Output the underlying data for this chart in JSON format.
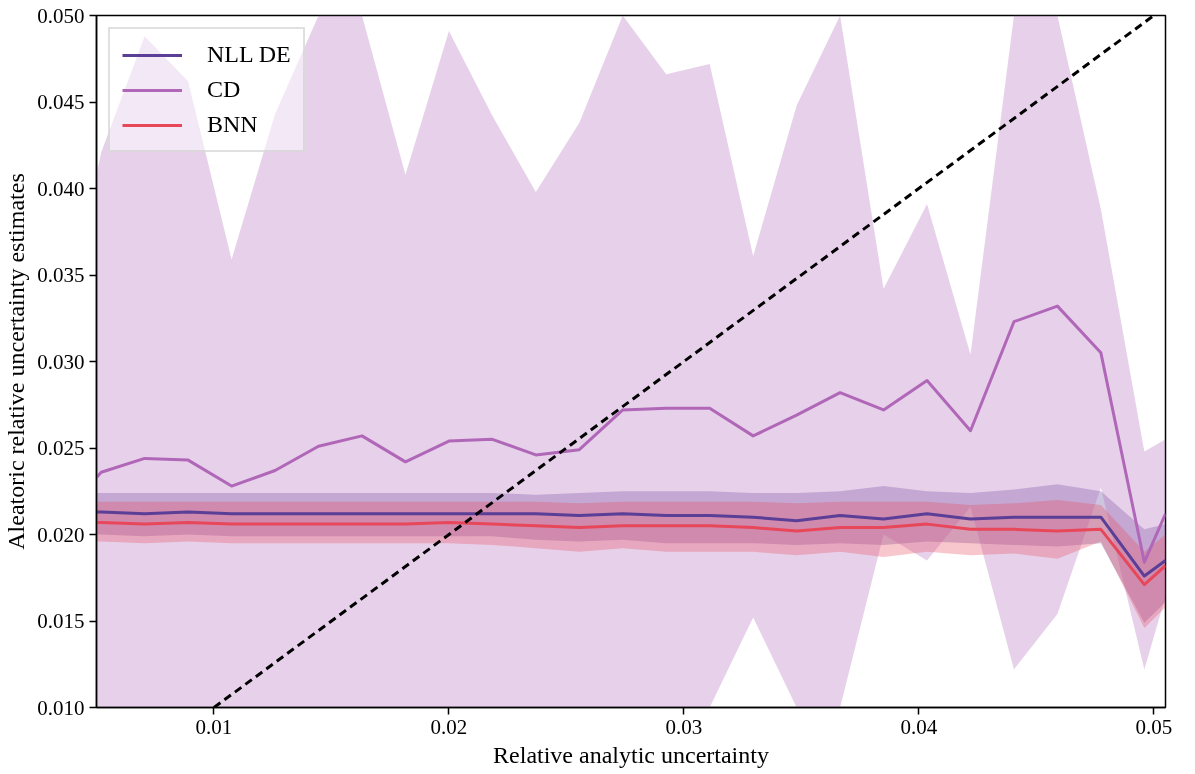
{
  "chart_data": {
    "type": "line",
    "xlabel": "Relative analytic uncertainty",
    "ylabel": "Aleatoric relative uncertainty estimates",
    "x": [
      0.005,
      0.0052,
      0.00705,
      0.0089,
      0.01075,
      0.0126,
      0.01445,
      0.0163,
      0.01815,
      0.02,
      0.02185,
      0.0237,
      0.02555,
      0.0274,
      0.02925,
      0.0311,
      0.03295,
      0.0348,
      0.03665,
      0.0385,
      0.04035,
      0.0422,
      0.04405,
      0.0459,
      0.04775,
      0.0496,
      0.0505
    ],
    "series": [
      {
        "name": "NLL DE",
        "color": "#5b3e96",
        "values": [
          0.0213,
          0.0213,
          0.0212,
          0.0213,
          0.0212,
          0.0212,
          0.0212,
          0.0212,
          0.0212,
          0.0212,
          0.0212,
          0.0212,
          0.0211,
          0.0212,
          0.0211,
          0.0211,
          0.021,
          0.0208,
          0.0211,
          0.0209,
          0.0212,
          0.0209,
          0.021,
          0.021,
          0.021,
          0.0176,
          0.0185
        ],
        "upper": [
          0.0224,
          0.0224,
          0.0224,
          0.0224,
          0.0224,
          0.0224,
          0.0224,
          0.0224,
          0.0224,
          0.0224,
          0.0224,
          0.0223,
          0.0224,
          0.0225,
          0.0225,
          0.0225,
          0.0224,
          0.0224,
          0.0225,
          0.0228,
          0.0225,
          0.0224,
          0.0226,
          0.0229,
          0.0225,
          0.0203,
          0.0206
        ],
        "lower": [
          0.02,
          0.02,
          0.0199,
          0.02,
          0.0199,
          0.0199,
          0.0199,
          0.0199,
          0.0199,
          0.0199,
          0.0199,
          0.0197,
          0.0196,
          0.0197,
          0.0195,
          0.0195,
          0.0195,
          0.0194,
          0.0195,
          0.0194,
          0.0196,
          0.0195,
          0.0194,
          0.0193,
          0.0195,
          0.0149,
          0.0161
        ]
      },
      {
        "name": "CD",
        "color": "#b067b8",
        "values": [
          0.0233,
          0.0236,
          0.0244,
          0.0243,
          0.0228,
          0.0237,
          0.0251,
          0.0257,
          0.0242,
          0.0254,
          0.0255,
          0.0246,
          0.0249,
          0.0272,
          0.0273,
          0.0273,
          0.0257,
          0.0269,
          0.0282,
          0.0272,
          0.0289,
          0.026,
          0.0323,
          0.0332,
          0.0305,
          0.0184,
          0.0212
        ],
        "upper": [
          0.0408,
          0.0421,
          0.0488,
          0.0462,
          0.0359,
          0.0443,
          0.05,
          0.05,
          0.0408,
          0.0491,
          0.0442,
          0.0398,
          0.0438,
          0.05,
          0.0466,
          0.0472,
          0.0361,
          0.0448,
          0.05,
          0.0342,
          0.0391,
          0.0304,
          0.05,
          0.05,
          0.0388,
          0.0248,
          0.0255
        ],
        "lower": [
          0.01,
          0.01,
          0.01,
          0.01,
          0.01,
          0.01,
          0.01,
          0.01,
          0.01,
          0.01,
          0.01,
          0.01,
          0.01,
          0.01,
          0.01,
          0.01,
          0.0152,
          0.01,
          0.01,
          0.02,
          0.0185,
          0.0216,
          0.0122,
          0.0154,
          0.0227,
          0.0122,
          0.0164
        ]
      },
      {
        "name": "BNN",
        "color": "#e8475a",
        "values": [
          0.0207,
          0.0207,
          0.0206,
          0.0207,
          0.0206,
          0.0206,
          0.0206,
          0.0206,
          0.0206,
          0.0207,
          0.0206,
          0.0205,
          0.0204,
          0.0205,
          0.0205,
          0.0205,
          0.0204,
          0.0202,
          0.0204,
          0.0204,
          0.0206,
          0.0203,
          0.0203,
          0.0202,
          0.0203,
          0.0171,
          0.0182
        ],
        "upper": [
          0.0219,
          0.0219,
          0.0219,
          0.0219,
          0.0219,
          0.0219,
          0.0219,
          0.0219,
          0.0219,
          0.0219,
          0.0219,
          0.0219,
          0.0218,
          0.0219,
          0.0219,
          0.0219,
          0.0219,
          0.0218,
          0.0219,
          0.0219,
          0.0219,
          0.0217,
          0.0218,
          0.022,
          0.0217,
          0.019,
          0.02
        ],
        "lower": [
          0.0196,
          0.0196,
          0.0195,
          0.0196,
          0.0195,
          0.0195,
          0.0195,
          0.0195,
          0.0195,
          0.0195,
          0.0194,
          0.0192,
          0.019,
          0.0192,
          0.019,
          0.019,
          0.019,
          0.0188,
          0.019,
          0.0187,
          0.019,
          0.0188,
          0.0189,
          0.0186,
          0.0196,
          0.0146,
          0.0158
        ]
      },
      {
        "color": "#000000",
        "line_style": "dashed",
        "x": [
          0.01,
          0.05
        ],
        "values": [
          0.01,
          0.05
        ]
      }
    ],
    "xlim": [
      0.005,
      0.0505
    ],
    "ylim": [
      0.01,
      0.05
    ],
    "xticks": [
      0.01,
      0.02,
      0.03,
      0.04,
      0.05
    ],
    "yticks": [
      {
        "value": 0.01,
        "label": "0.010"
      },
      0.015,
      {
        "value": 0.02,
        "label": "0.020"
      },
      0.025,
      {
        "value": 0.03,
        "label": "0.030"
      },
      0.035,
      {
        "value": 0.04,
        "label": "0.040"
      },
      0.045,
      {
        "value": 0.05,
        "label": "0.050"
      }
    ],
    "legend": "top left",
    "grid": false,
    "line_style": "solid"
  }
}
